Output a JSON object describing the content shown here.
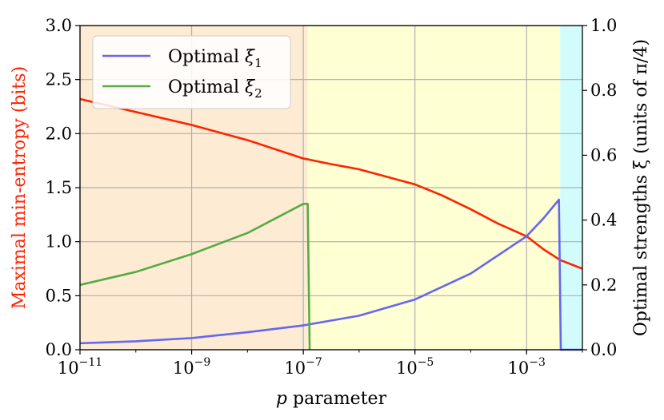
{
  "chart_data": {
    "type": "line",
    "xscale": "log",
    "xlabel": "p parameter",
    "ylabel_left": "Maximal min-entropy (bits)",
    "ylabel_right": "Optimal strengths ξ (units of π/4)",
    "xlim": [
      1e-11,
      0.01
    ],
    "ylim_left": [
      0,
      3.0
    ],
    "ylim_right": [
      0,
      1.0
    ],
    "x_ticks": [
      {
        "base": "10",
        "exp": "−11",
        "value": 1e-11
      },
      {
        "base": "10",
        "exp": "−9",
        "value": 1e-09
      },
      {
        "base": "10",
        "exp": "−7",
        "value": 1e-07
      },
      {
        "base": "10",
        "exp": "−5",
        "value": 1e-05
      },
      {
        "base": "10",
        "exp": "−3",
        "value": 0.001
      }
    ],
    "y_ticks_left": [
      "0.0",
      "0.5",
      "1.0",
      "1.5",
      "2.0",
      "2.5",
      "3.0"
    ],
    "y_ticks_right": [
      "0.0",
      "0.2",
      "0.4",
      "0.6",
      "0.8",
      "1.0"
    ],
    "grid": true,
    "legend_position": "top-left",
    "regions": [
      {
        "x0": 1e-11,
        "x1": 1.2e-07,
        "color": "#fdebd3"
      },
      {
        "x0": 1.2e-07,
        "x1": 0.004,
        "color": "#ffffd4"
      },
      {
        "x0": 0.004,
        "x1": 0.01,
        "color": "#d2fbfb"
      }
    ],
    "series": [
      {
        "axis": "left",
        "color": "#ff2200",
        "points": [
          [
            1e-11,
            2.32
          ],
          [
            1e-10,
            2.2
          ],
          [
            1e-09,
            2.08
          ],
          [
            1e-08,
            1.94
          ],
          [
            1e-07,
            1.77
          ],
          [
            3e-07,
            1.72
          ],
          [
            1e-06,
            1.67
          ],
          [
            1e-05,
            1.53
          ],
          [
            3e-05,
            1.43
          ],
          [
            0.0001,
            1.3
          ],
          [
            0.0003,
            1.17
          ],
          [
            0.001,
            1.05
          ],
          [
            0.002,
            0.93
          ],
          [
            0.004,
            0.83
          ],
          [
            0.01,
            0.75
          ]
        ]
      },
      {
        "axis": "right",
        "name_prefix": "Optimal ",
        "symbol": "ξ",
        "subscript": "1",
        "color": "#6666ee",
        "points": [
          [
            1e-11,
            0.02
          ],
          [
            1e-10,
            0.026
          ],
          [
            1e-09,
            0.036
          ],
          [
            1e-08,
            0.054
          ],
          [
            1e-07,
            0.075
          ],
          [
            1e-06,
            0.105
          ],
          [
            1e-05,
            0.155
          ],
          [
            0.0001,
            0.235
          ],
          [
            0.001,
            0.35
          ],
          [
            0.002,
            0.405
          ],
          [
            0.0038,
            0.463
          ],
          [
            0.0041,
            0.0
          ],
          [
            0.01,
            0.0
          ]
        ]
      },
      {
        "axis": "right",
        "name_prefix": "Optimal ",
        "symbol": "ξ",
        "subscript": "2",
        "color": "#55aa44",
        "points": [
          [
            1e-11,
            0.2
          ],
          [
            1e-10,
            0.24
          ],
          [
            1e-09,
            0.295
          ],
          [
            1e-08,
            0.36
          ],
          [
            1e-07,
            0.45
          ],
          [
            1.2e-07,
            0.45
          ],
          [
            1.3e-07,
            0.0
          ]
        ]
      }
    ]
  }
}
